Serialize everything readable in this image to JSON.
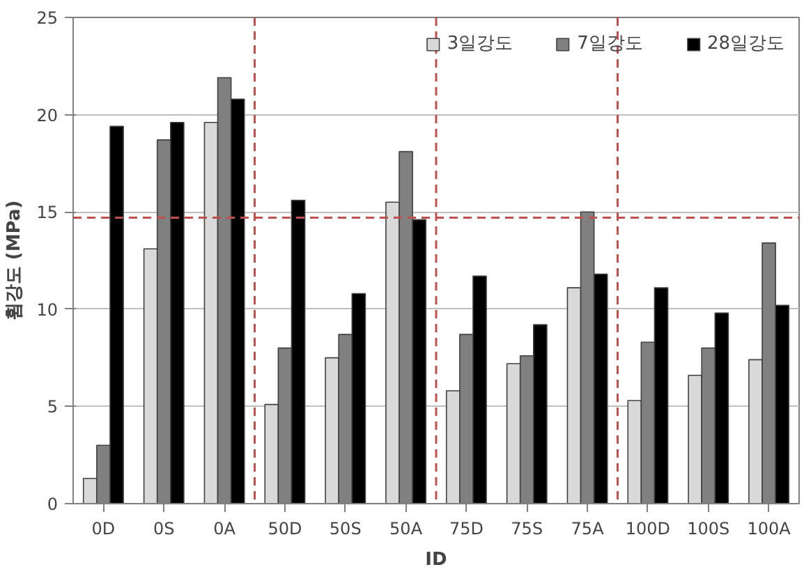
{
  "chart_data": {
    "type": "bar",
    "xlabel": "ID",
    "ylabel": "휨강도 (MPa)",
    "categories": [
      "0D",
      "0S",
      "0A",
      "50D",
      "50S",
      "50A",
      "75D",
      "75S",
      "75A",
      "100D",
      "100S",
      "100A"
    ],
    "series": [
      {
        "name": "3일강도",
        "color": "#d9d9d9",
        "values": [
          1.3,
          13.1,
          19.6,
          5.1,
          7.5,
          15.5,
          5.8,
          7.2,
          11.1,
          5.3,
          6.6,
          7.4
        ]
      },
      {
        "name": "7일강도",
        "color": "#808080",
        "values": [
          3.0,
          18.7,
          21.9,
          8.0,
          8.7,
          18.1,
          8.7,
          7.6,
          15.0,
          8.3,
          8.0,
          13.4
        ]
      },
      {
        "name": "28일강도",
        "color": "#000000",
        "values": [
          19.4,
          19.6,
          20.8,
          15.6,
          10.8,
          14.6,
          11.7,
          9.2,
          11.8,
          11.1,
          9.8,
          10.2
        ]
      }
    ],
    "ylim": [
      0,
      25
    ],
    "yticks": [
      0,
      5,
      10,
      15,
      20,
      25
    ],
    "grid": "y",
    "legend": "top right",
    "ref_lines": [
      {
        "axis": "y",
        "value": 14.7,
        "color": "#c0504d",
        "line_style": "dashed"
      }
    ]
  }
}
